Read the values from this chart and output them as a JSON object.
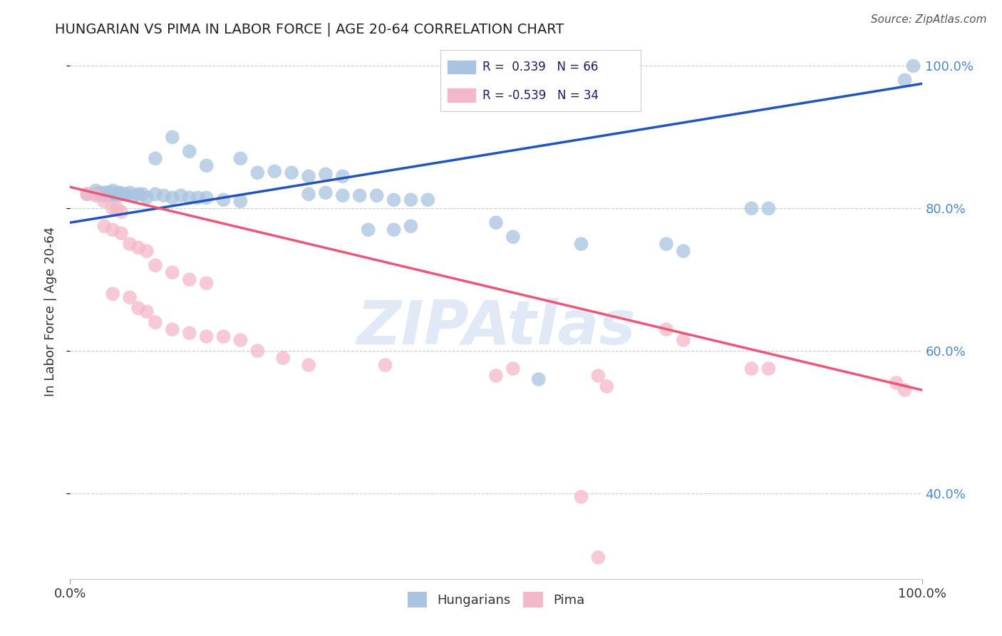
{
  "title": "HUNGARIAN VS PIMA IN LABOR FORCE | AGE 20-64 CORRELATION CHART",
  "source": "Source: ZipAtlas.com",
  "ylabel": "In Labor Force | Age 20-64",
  "xlim": [
    0.0,
    1.0
  ],
  "ylim": [
    0.28,
    1.03
  ],
  "yticks": [
    0.4,
    0.6,
    0.8,
    1.0
  ],
  "xticks": [
    0.0,
    1.0
  ],
  "hungarian_color": "#a8c4e0",
  "pima_color": "#f4b8c8",
  "line_blue": "#2255bb",
  "line_pink": "#ee5577",
  "background_color": "#ffffff",
  "watermark_color": "#c8d8ee",
  "hungarian_points": [
    [
      0.02,
      0.82
    ],
    [
      0.03,
      0.825
    ],
    [
      0.03,
      0.82
    ],
    [
      0.035,
      0.822
    ],
    [
      0.04,
      0.822
    ],
    [
      0.04,
      0.818
    ],
    [
      0.042,
      0.822
    ],
    [
      0.044,
      0.818
    ],
    [
      0.046,
      0.822
    ],
    [
      0.048,
      0.82
    ],
    [
      0.05,
      0.825
    ],
    [
      0.05,
      0.818
    ],
    [
      0.052,
      0.82
    ],
    [
      0.054,
      0.822
    ],
    [
      0.056,
      0.818
    ],
    [
      0.058,
      0.822
    ],
    [
      0.06,
      0.82
    ],
    [
      0.062,
      0.82
    ],
    [
      0.065,
      0.82
    ],
    [
      0.07,
      0.822
    ],
    [
      0.075,
      0.818
    ],
    [
      0.08,
      0.82
    ],
    [
      0.085,
      0.82
    ],
    [
      0.09,
      0.815
    ],
    [
      0.1,
      0.82
    ],
    [
      0.11,
      0.818
    ],
    [
      0.12,
      0.815
    ],
    [
      0.13,
      0.818
    ],
    [
      0.14,
      0.815
    ],
    [
      0.15,
      0.815
    ],
    [
      0.16,
      0.815
    ],
    [
      0.18,
      0.812
    ],
    [
      0.2,
      0.81
    ],
    [
      0.1,
      0.87
    ],
    [
      0.12,
      0.9
    ],
    [
      0.14,
      0.88
    ],
    [
      0.16,
      0.86
    ],
    [
      0.2,
      0.87
    ],
    [
      0.22,
      0.85
    ],
    [
      0.24,
      0.852
    ],
    [
      0.26,
      0.85
    ],
    [
      0.28,
      0.845
    ],
    [
      0.3,
      0.848
    ],
    [
      0.32,
      0.845
    ],
    [
      0.28,
      0.82
    ],
    [
      0.3,
      0.822
    ],
    [
      0.32,
      0.818
    ],
    [
      0.34,
      0.818
    ],
    [
      0.36,
      0.818
    ],
    [
      0.38,
      0.812
    ],
    [
      0.4,
      0.812
    ],
    [
      0.42,
      0.812
    ],
    [
      0.35,
      0.77
    ],
    [
      0.38,
      0.77
    ],
    [
      0.4,
      0.775
    ],
    [
      0.5,
      0.78
    ],
    [
      0.52,
      0.76
    ],
    [
      0.55,
      0.56
    ],
    [
      0.6,
      0.75
    ],
    [
      0.7,
      0.75
    ],
    [
      0.72,
      0.74
    ],
    [
      0.8,
      0.8
    ],
    [
      0.82,
      0.8
    ],
    [
      0.98,
      0.98
    ],
    [
      0.99,
      1.0
    ]
  ],
  "pima_points": [
    [
      0.02,
      0.82
    ],
    [
      0.03,
      0.818
    ],
    [
      0.04,
      0.81
    ],
    [
      0.05,
      0.8
    ],
    [
      0.055,
      0.8
    ],
    [
      0.06,
      0.795
    ],
    [
      0.04,
      0.775
    ],
    [
      0.05,
      0.77
    ],
    [
      0.06,
      0.765
    ],
    [
      0.07,
      0.75
    ],
    [
      0.08,
      0.745
    ],
    [
      0.09,
      0.74
    ],
    [
      0.1,
      0.72
    ],
    [
      0.12,
      0.71
    ],
    [
      0.14,
      0.7
    ],
    [
      0.16,
      0.695
    ],
    [
      0.05,
      0.68
    ],
    [
      0.07,
      0.675
    ],
    [
      0.08,
      0.66
    ],
    [
      0.09,
      0.655
    ],
    [
      0.1,
      0.64
    ],
    [
      0.12,
      0.63
    ],
    [
      0.14,
      0.625
    ],
    [
      0.16,
      0.62
    ],
    [
      0.18,
      0.62
    ],
    [
      0.2,
      0.615
    ],
    [
      0.22,
      0.6
    ],
    [
      0.25,
      0.59
    ],
    [
      0.28,
      0.58
    ],
    [
      0.37,
      0.58
    ],
    [
      0.5,
      0.565
    ],
    [
      0.52,
      0.575
    ],
    [
      0.62,
      0.565
    ],
    [
      0.63,
      0.55
    ],
    [
      0.7,
      0.63
    ],
    [
      0.72,
      0.615
    ],
    [
      0.8,
      0.575
    ],
    [
      0.82,
      0.575
    ],
    [
      0.97,
      0.555
    ],
    [
      0.98,
      0.545
    ],
    [
      0.6,
      0.395
    ],
    [
      0.62,
      0.31
    ]
  ],
  "blue_line_x": [
    0.0,
    1.0
  ],
  "blue_line_y": [
    0.78,
    0.975
  ],
  "pink_line_x": [
    0.0,
    1.0
  ],
  "pink_line_y": [
    0.83,
    0.545
  ]
}
